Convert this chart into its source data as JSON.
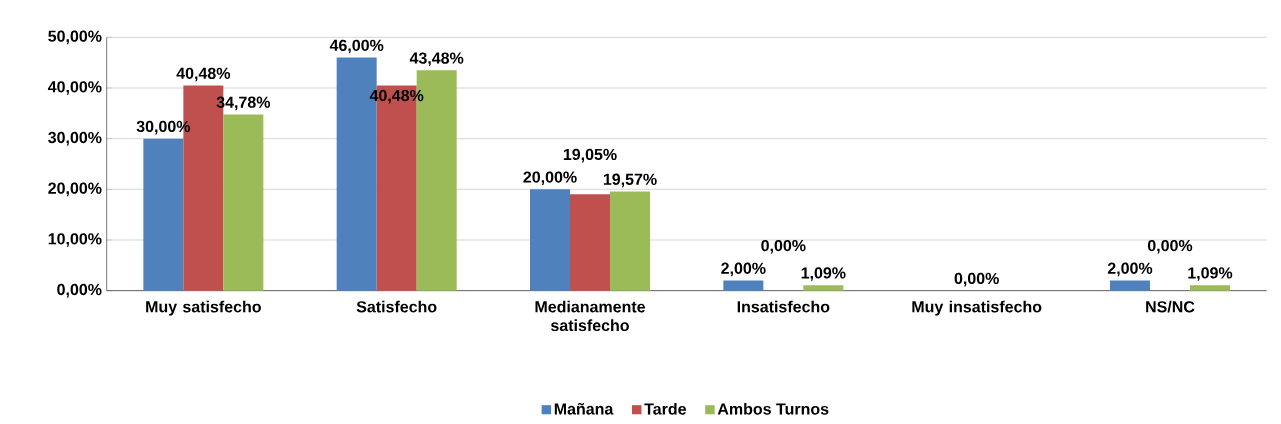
{
  "chart_data": {
    "type": "bar",
    "categories": [
      "Muy satisfecho",
      "Satisfecho",
      "Medianamente satisfecho",
      "Insatisfecho",
      "Muy insatisfecho",
      "NS/NC"
    ],
    "series": [
      {
        "name": "Mañana",
        "color": "#4f81bd",
        "values": [
          30.0,
          46.0,
          20.0,
          2.0,
          0.0,
          2.0
        ],
        "value_labels": [
          "30,00%",
          "46,00%",
          "20,00%",
          "2,00%",
          null,
          "2,00%"
        ]
      },
      {
        "name": "Tarde",
        "color": "#c0504d",
        "values": [
          40.48,
          40.48,
          19.05,
          0.0,
          0.0,
          0.0
        ],
        "value_labels": [
          "40,48%",
          "40,48%",
          "19,05%",
          "0,00%",
          "0,00%",
          "0,00%"
        ]
      },
      {
        "name": "Ambos Turnos",
        "color": "#9bbb59",
        "values": [
          34.78,
          43.48,
          19.57,
          1.09,
          0.0,
          1.09
        ],
        "value_labels": [
          "34,78%",
          "43,48%",
          "19,57%",
          "1,09%",
          null,
          "1,09%"
        ]
      }
    ],
    "ylim": [
      0,
      50
    ],
    "yticks": [
      {
        "value": 0,
        "label": "0,00%"
      },
      {
        "value": 10,
        "label": "10,00%"
      },
      {
        "value": 20,
        "label": "20,00%"
      },
      {
        "value": 30,
        "label": "30,00%"
      },
      {
        "value": 40,
        "label": "40,00%"
      },
      {
        "value": 50,
        "label": "50,00%"
      }
    ],
    "grid": "y",
    "legend": "bottom"
  }
}
